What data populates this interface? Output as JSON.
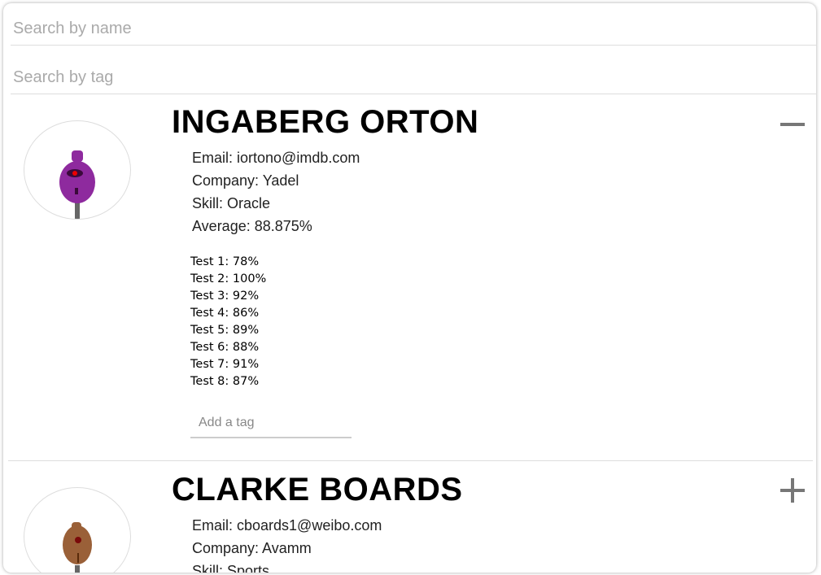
{
  "search": {
    "name_placeholder": "Search by name",
    "tag_placeholder": "Search by tag"
  },
  "students": [
    {
      "name": "INGABERG ORTON",
      "email": "Email: iortono@imdb.com",
      "company": "Company: Yadel",
      "skill": "Skill: Oracle",
      "average": "Average: 88.875%",
      "tests": [
        "Test 1: 78%",
        "Test 2: 100%",
        "Test 3: 92%",
        "Test 4: 86%",
        "Test 5: 89%",
        "Test 6: 88%",
        "Test 7: 91%",
        "Test 8: 87%"
      ],
      "tag_placeholder": "Add a tag",
      "toggle_icon": "minus-icon",
      "avatar_color": "#8e2a9e",
      "expanded": true
    },
    {
      "name": "CLARKE BOARDS",
      "email": "Email: cboards1@weibo.com",
      "company": "Company: Avamm",
      "skill": "Skill: Sports",
      "toggle_icon": "plus-icon",
      "avatar_color": "#9a6038",
      "expanded": false
    }
  ]
}
